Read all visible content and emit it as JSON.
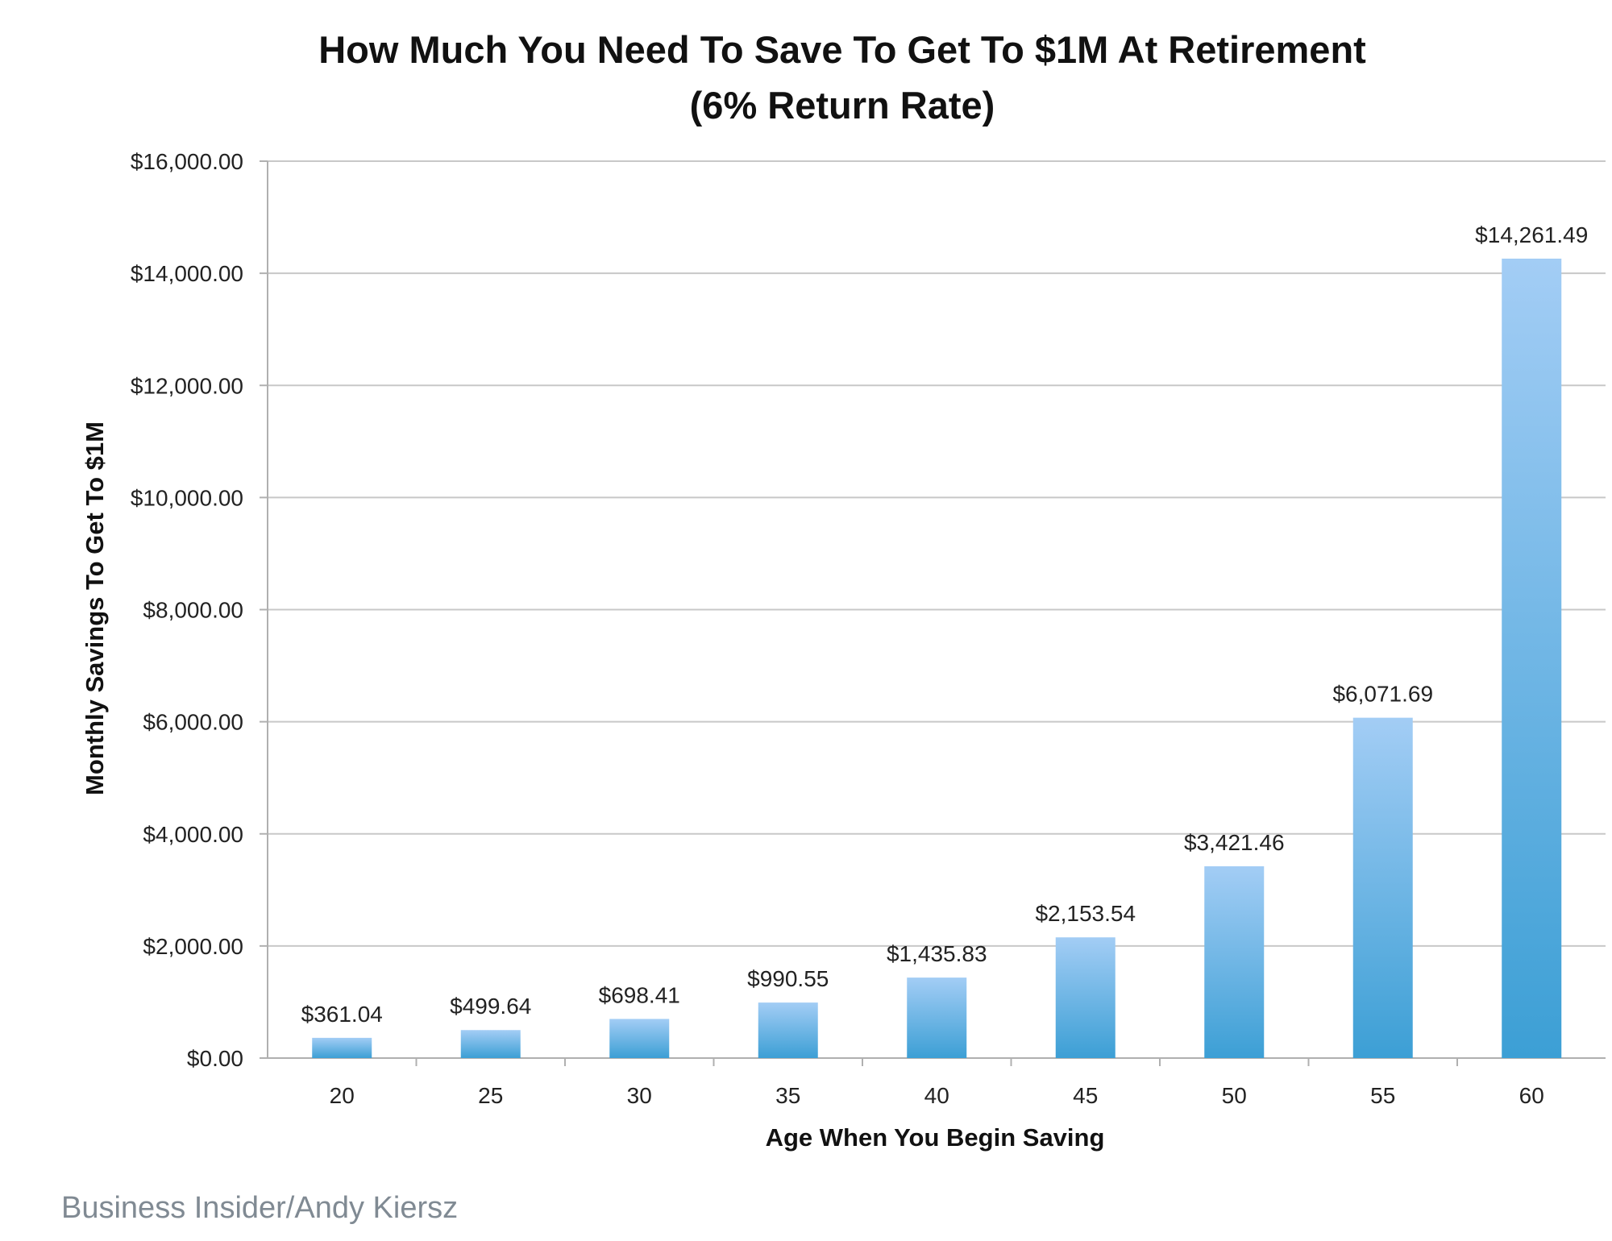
{
  "chart_data": {
    "type": "bar",
    "title": "How Much You Need To Save To Get To $1M At Retirement",
    "subtitle": "(6% Return Rate)",
    "xlabel": "Age When You Begin Saving",
    "ylabel": "Monthly Savings To Get To $1M",
    "categories": [
      "20",
      "25",
      "30",
      "35",
      "40",
      "45",
      "50",
      "55",
      "60"
    ],
    "values": [
      361.04,
      499.64,
      698.41,
      990.55,
      1435.83,
      2153.54,
      3421.46,
      6071.69,
      14261.49
    ],
    "data_labels": [
      "$361.04",
      "$499.64",
      "$698.41",
      "$990.55",
      "$1,435.83",
      "$2,153.54",
      "$3,421.46",
      "$6,071.69",
      "$14,261.49"
    ],
    "ylim": [
      0,
      16000
    ],
    "y_ticks": [
      0,
      2000,
      4000,
      6000,
      8000,
      10000,
      12000,
      14000,
      16000
    ],
    "y_tick_labels": [
      "$0.00",
      "$2,000.00",
      "$4,000.00",
      "$6,000.00",
      "$8,000.00",
      "$10,000.00",
      "$12,000.00",
      "$14,000.00",
      "$16,000.00"
    ],
    "grid": true,
    "legend": "none",
    "bar_color_top": "#a3cdf5",
    "bar_color_bottom": "#3c9fd5"
  },
  "source": "Business Insider/Andy Kiersz"
}
